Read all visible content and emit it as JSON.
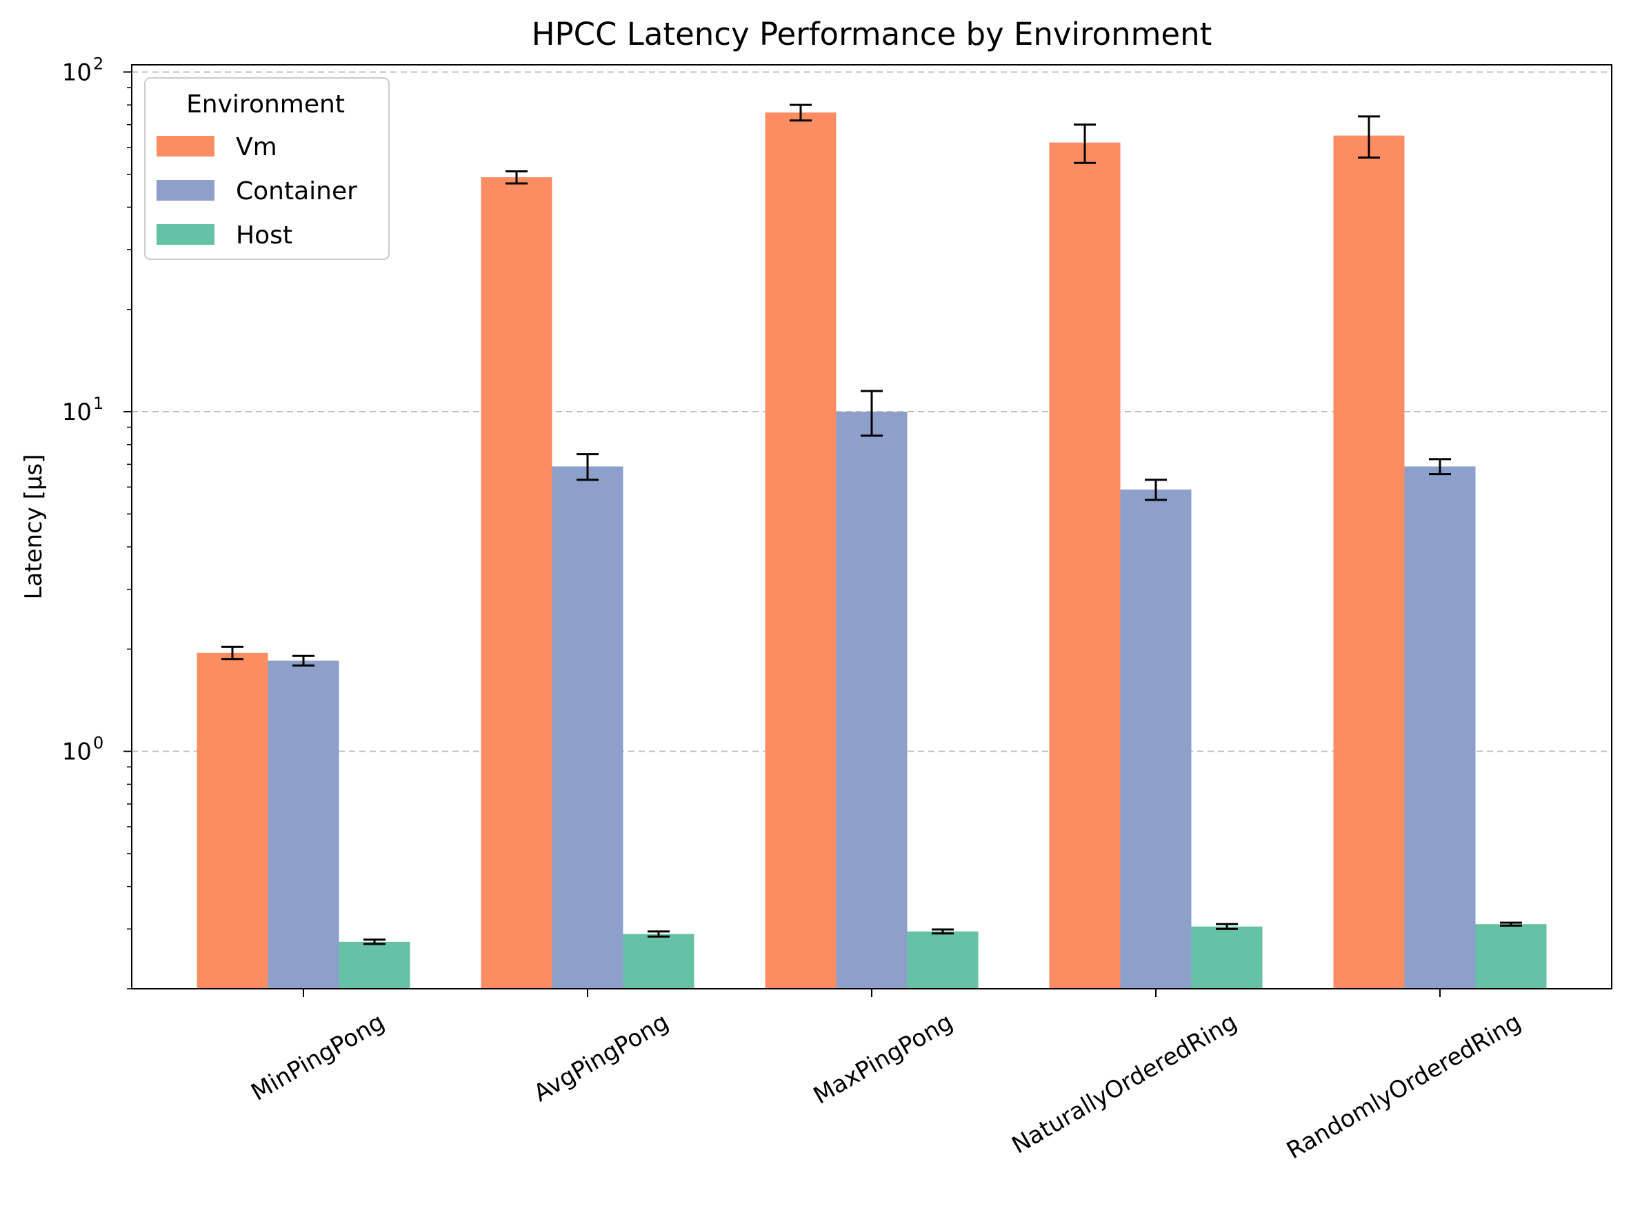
{
  "chart_data": {
    "type": "bar",
    "title": "HPCC Latency Performance by Environment",
    "xlabel": "",
    "ylabel": "Latency [µs]",
    "yscale": "log",
    "ylim": [
      0.2,
      105
    ],
    "yticks": [
      {
        "base": "10",
        "exp": "0",
        "value": 1
      },
      {
        "base": "10",
        "exp": "1",
        "value": 10
      },
      {
        "base": "10",
        "exp": "2",
        "value": 100
      }
    ],
    "grid": "y-major-dashed",
    "categories": [
      "MinPingPong",
      "AvgPingPong",
      "MaxPingPong",
      "NaturallyOrderedRing",
      "RandomlyOrderedRing"
    ],
    "legend": {
      "title": "Environment",
      "placement": "top-left"
    },
    "series": [
      {
        "name": "Vm",
        "color": "#fc8d62",
        "values": [
          1.95,
          49,
          76,
          62,
          65
        ],
        "errors": [
          0.08,
          2.0,
          4.0,
          8.0,
          9.0
        ]
      },
      {
        "name": "Container",
        "color": "#8da0cb",
        "values": [
          1.85,
          6.9,
          10.0,
          5.9,
          6.9
        ],
        "errors": [
          0.06,
          0.6,
          1.5,
          0.4,
          0.35
        ]
      },
      {
        "name": "Host",
        "color": "#66c2a5",
        "values": [
          0.275,
          0.29,
          0.295,
          0.305,
          0.31
        ],
        "errors": [
          0.004,
          0.005,
          0.004,
          0.005,
          0.003
        ]
      }
    ]
  }
}
